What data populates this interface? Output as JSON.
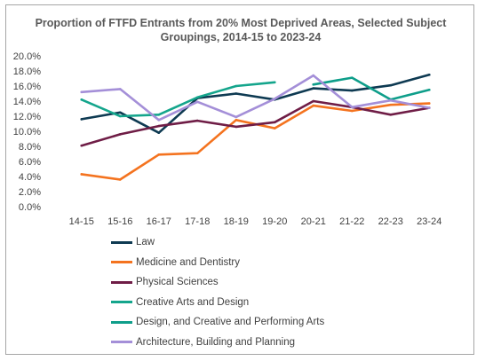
{
  "chart_data": {
    "type": "line",
    "title": "Proportion of FTFD Entrants from 20% Most Deprived Areas, Selected Subject Groupings, 2014-15 to 2023-24",
    "xlabel": "",
    "ylabel": "",
    "categories": [
      "14-15",
      "15-16",
      "16-17",
      "17-18",
      "18-19",
      "19-20",
      "20-21",
      "21-22",
      "22-23",
      "23-24"
    ],
    "ylim": [
      0,
      20
    ],
    "yticks": [
      "0.0%",
      "2.0%",
      "4.0%",
      "6.0%",
      "8.0%",
      "10.0%",
      "12.0%",
      "14.0%",
      "16.0%",
      "18.0%",
      "20.0%"
    ],
    "grid": false,
    "legend_position": "bottom",
    "series": [
      {
        "name": "Law",
        "color": "#0e3a52",
        "values": [
          11.6,
          12.5,
          9.8,
          14.4,
          15.0,
          14.2,
          15.7,
          15.4,
          16.1,
          17.5
        ]
      },
      {
        "name": "Medicine and Dentistry",
        "color": "#f4731f",
        "values": [
          4.3,
          3.6,
          6.9,
          7.1,
          11.5,
          10.4,
          13.4,
          12.7,
          13.5,
          13.7
        ]
      },
      {
        "name": "Physical Sciences",
        "color": "#6f1d46",
        "values": [
          8.1,
          9.6,
          10.7,
          11.4,
          10.6,
          11.2,
          14.0,
          13.2,
          12.2,
          13.1
        ]
      },
      {
        "name": "Creative Arts and Design",
        "color": "#14a58c",
        "values": [
          14.2,
          12.0,
          12.2,
          14.5,
          16.0,
          16.5,
          null,
          null,
          null,
          null
        ]
      },
      {
        "name": "Design, and Creative and Performing Arts",
        "color": "#0e9e8a",
        "values": [
          null,
          null,
          null,
          null,
          null,
          null,
          16.2,
          17.1,
          14.2,
          15.5
        ]
      },
      {
        "name": "Architecture, Building and Planning",
        "color": "#a48fd8",
        "values": [
          15.2,
          15.6,
          11.5,
          13.9,
          11.9,
          14.3,
          17.4,
          13.2,
          14.1,
          13.1
        ]
      }
    ]
  }
}
